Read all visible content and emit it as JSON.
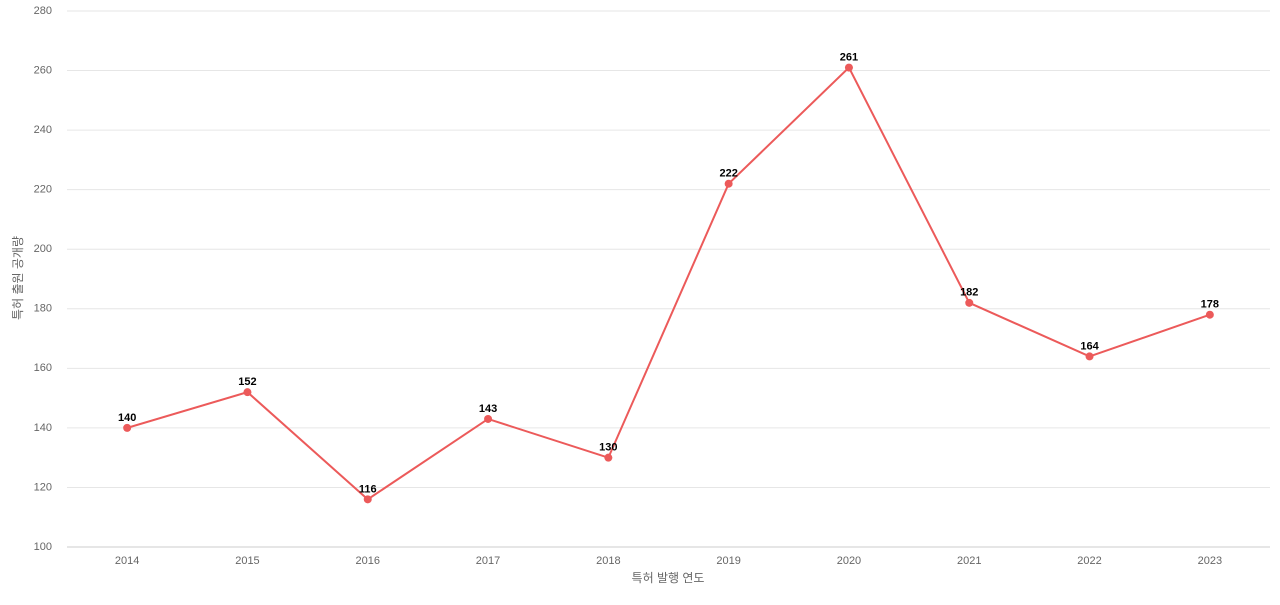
{
  "chart_data": {
    "type": "line",
    "x_label": "특허 발행 연도",
    "y_label": "특허 출원 공개량",
    "categories": [
      "2014",
      "2015",
      "2016",
      "2017",
      "2018",
      "2019",
      "2020",
      "2021",
      "2022",
      "2023"
    ],
    "series": [
      {
        "name": "특허 출원 공개량",
        "color": "#ec5a5a",
        "values": [
          140,
          152,
          116,
          143,
          130,
          222,
          261,
          182,
          164,
          178
        ]
      }
    ],
    "ylim": [
      100,
      280
    ],
    "yticks": [
      100,
      120,
      140,
      160,
      180,
      200,
      220,
      240,
      260,
      280
    ],
    "grid": true,
    "legend": false
  }
}
